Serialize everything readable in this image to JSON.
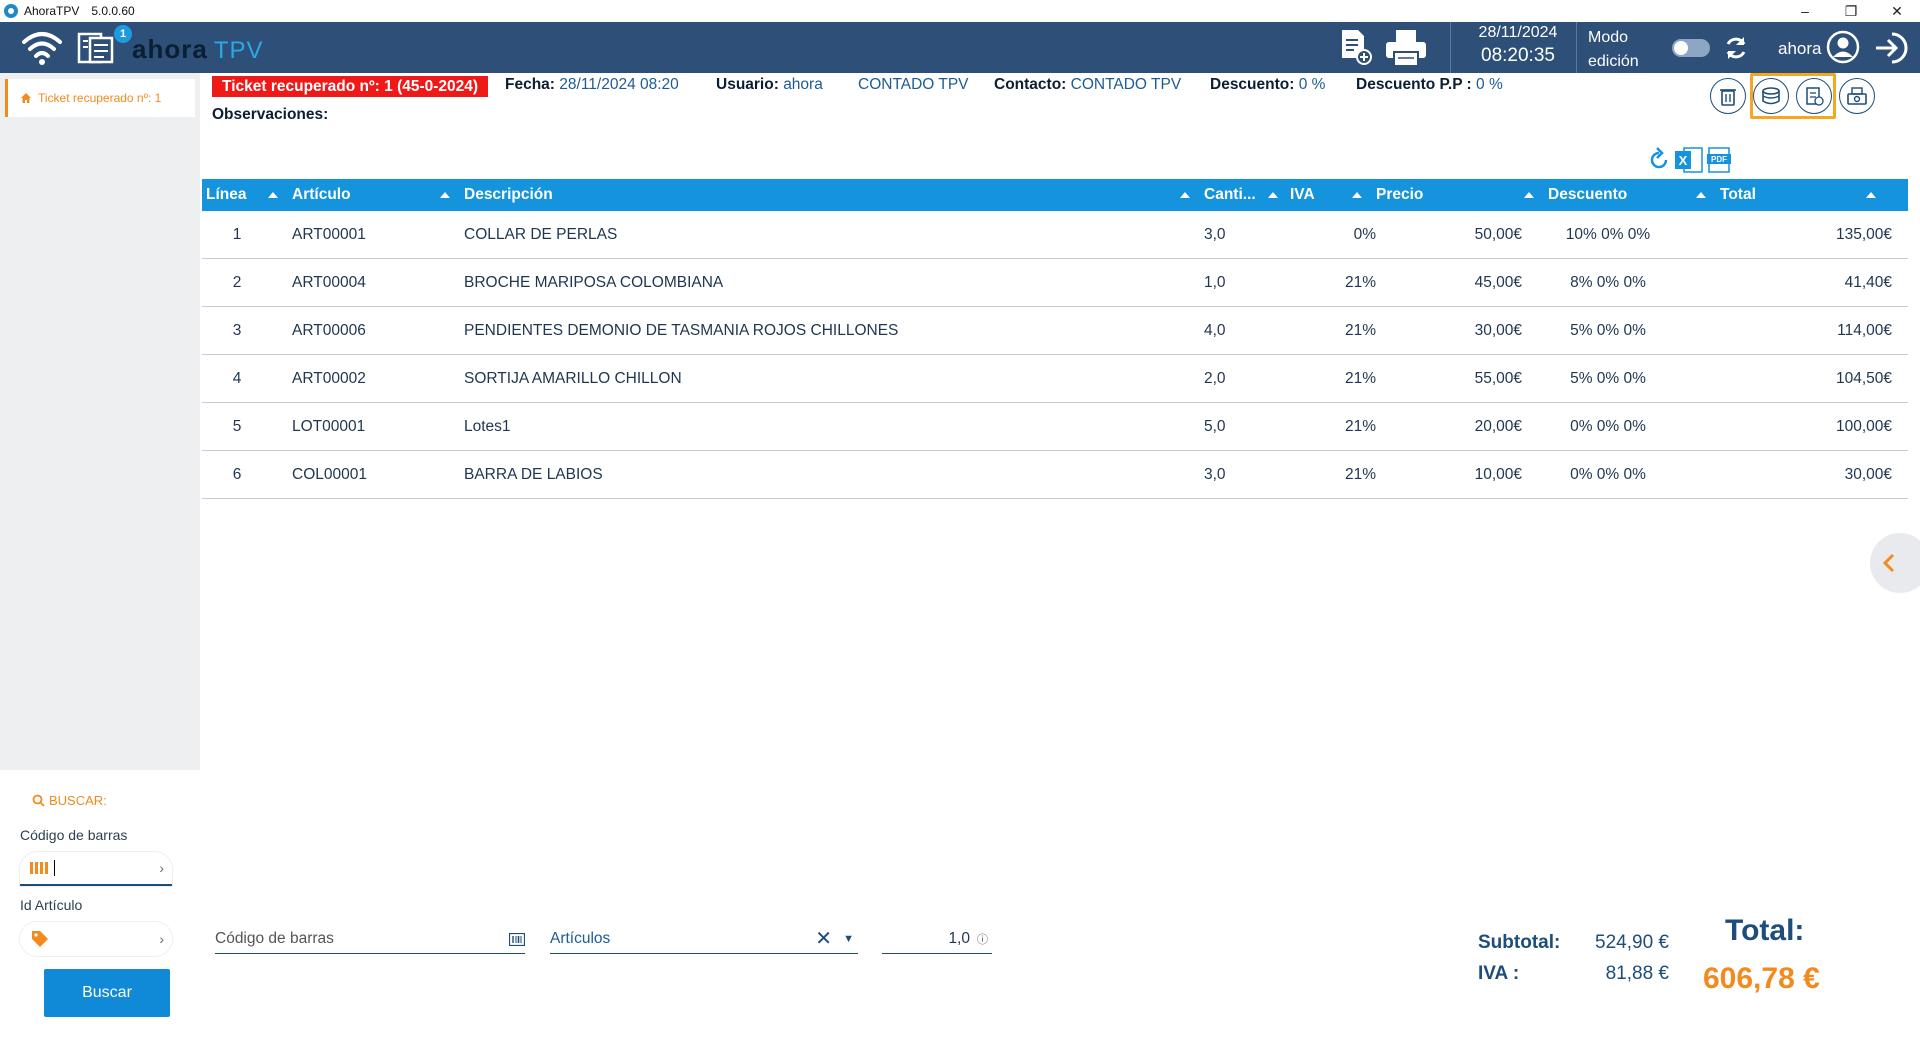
{
  "window": {
    "app_name": "AhoraTPV",
    "version": "5.0.0.60"
  },
  "header": {
    "badge_count": "1",
    "logo_text": "ahora",
    "logo_suffix": "TPV",
    "date": "28/11/2024",
    "time": "08:20:35",
    "mode_line1": "Modo",
    "mode_line2": "edición",
    "user": "ahora"
  },
  "sidebar": {
    "tab_label": "Ticket recuperado nº: 1",
    "search_title": "BUSCAR:",
    "barcode_label": "Código de barras",
    "article_id_label": "Id Artículo",
    "search_button": "Buscar"
  },
  "info": {
    "ticket": "Ticket recuperado nº: 1 (45-0-2024)",
    "fecha_label": "Fecha:",
    "fecha_value": "28/11/2024 08:20",
    "usuario_label": "Usuario:",
    "usuario_value": "ahora",
    "cliente_value": "CONTADO TPV",
    "contacto_label": "Contacto:",
    "contacto_value": "CONTADO TPV",
    "descuento_label": "Descuento:",
    "descuento_value": "0 %",
    "descuento_pp_label": "Descuento P.P :",
    "descuento_pp_value": "0 %",
    "observaciones_label": "Observaciones:"
  },
  "table": {
    "columns": [
      "Línea",
      "Artículo",
      "Descripción",
      "Canti...",
      "IVA",
      "Precio",
      "Descuento",
      "Total"
    ],
    "rows": [
      {
        "linea": "1",
        "articulo": "ART00001",
        "descripcion": "COLLAR DE PERLAS",
        "cantidad": "3,0",
        "iva": "0%",
        "precio": "50,00€",
        "descuento": "10% 0% 0%",
        "total": "135,00€"
      },
      {
        "linea": "2",
        "articulo": "ART00004",
        "descripcion": "BROCHE MARIPOSA COLOMBIANA",
        "cantidad": "1,0",
        "iva": "21%",
        "precio": "45,00€",
        "descuento": "8% 0% 0%",
        "total": "41,40€"
      },
      {
        "linea": "3",
        "articulo": "ART00006",
        "descripcion": "PENDIENTES DEMONIO DE TASMANIA ROJOS CHILLONES",
        "cantidad": "4,0",
        "iva": "21%",
        "precio": "30,00€",
        "descuento": "5% 0% 0%",
        "total": "114,00€"
      },
      {
        "linea": "4",
        "articulo": "ART00002",
        "descripcion": "SORTIJA AMARILLO CHILLON",
        "cantidad": "2,0",
        "iva": "21%",
        "precio": "55,00€",
        "descuento": "5% 0% 0%",
        "total": "104,50€"
      },
      {
        "linea": "5",
        "articulo": "LOT00001",
        "descripcion": "Lotes1",
        "cantidad": "5,0",
        "iva": "21%",
        "precio": "20,00€",
        "descuento": "0% 0% 0%",
        "total": "100,00€"
      },
      {
        "linea": "6",
        "articulo": "COL00001",
        "descripcion": "BARRA DE LABIOS",
        "cantidad": "3,0",
        "iva": "21%",
        "precio": "10,00€",
        "descuento": "0% 0% 0%",
        "total": "30,00€"
      }
    ]
  },
  "bottom": {
    "barcode_placeholder": "Código de barras",
    "articles_placeholder": "Artículos",
    "quantity": "1,0"
  },
  "totals": {
    "subtotal_label": "Subtotal:",
    "subtotal_value": "524,90 €",
    "iva_label": "IVA :",
    "iva_value": "81,88 €",
    "total_label": "Total:",
    "total_value": "606,78 €"
  },
  "colors": {
    "header": "#2d4f78",
    "table_header": "#1593dc",
    "accent": "#f28a1e",
    "ticket_tag": "#ee1a1a",
    "highlight_box": "#f5a623"
  }
}
